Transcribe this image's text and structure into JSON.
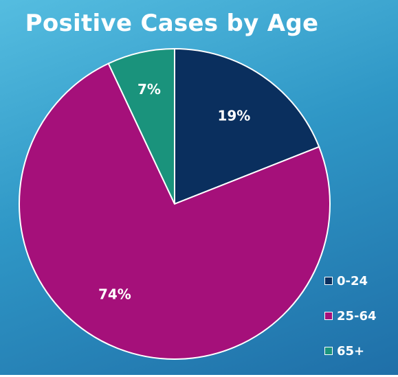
{
  "chart_data": {
    "type": "pie",
    "title": "Positive Cases by Age",
    "categories": [
      "0-24",
      "25-64",
      "65+"
    ],
    "values": [
      19,
      74,
      7
    ],
    "labels": [
      "19%",
      "74%",
      "7%"
    ],
    "colors": [
      "#0a2f5e",
      "#a5107a",
      "#1a937c"
    ],
    "legend_placement": "bottom-right"
  }
}
